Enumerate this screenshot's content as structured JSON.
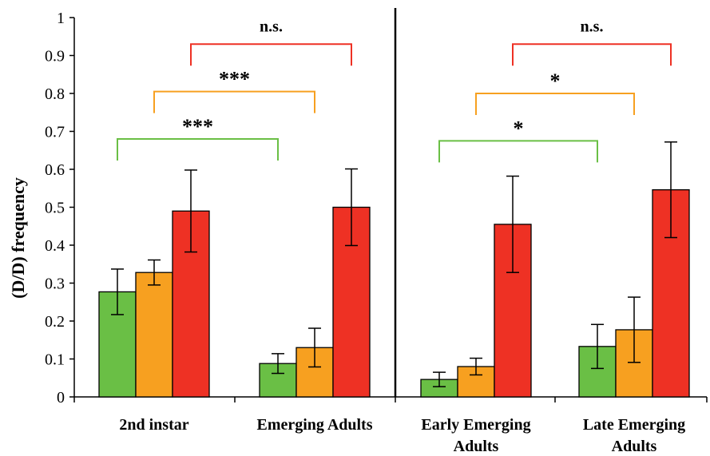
{
  "chart_data": {
    "type": "bar",
    "ylabel": "(D/D) frequency",
    "ylim": [
      0,
      1
    ],
    "yticks": [
      "0",
      "0.1",
      "0.2",
      "0.3",
      "0.4",
      "0.5",
      "0.6",
      "0.7",
      "0.8",
      "0.9",
      "1"
    ],
    "categories": [
      [
        "2nd instar"
      ],
      [
        "Emerging Adults"
      ],
      [
        "Early Emerging",
        "Adults"
      ],
      [
        "Late Emerging",
        "Adults"
      ]
    ],
    "series": [
      {
        "color": "#6abf45",
        "values": [
          0.277,
          0.088,
          0.046,
          0.133
        ],
        "errors": [
          0.06,
          0.026,
          0.019,
          0.058
        ]
      },
      {
        "color": "#f7a020",
        "values": [
          0.328,
          0.13,
          0.08,
          0.177
        ],
        "errors": [
          0.033,
          0.051,
          0.022,
          0.086
        ]
      },
      {
        "color": "#ee3124",
        "values": [
          0.49,
          0.5,
          0.455,
          0.546
        ],
        "errors": [
          0.108,
          0.101,
          0.127,
          0.126
        ]
      }
    ],
    "divider_after_category": 1,
    "significance": [
      {
        "label": "***",
        "from_category": 0,
        "to_category": 1,
        "series": 0,
        "level": 0.68
      },
      {
        "label": "***",
        "from_category": 0,
        "to_category": 1,
        "series": 1,
        "level": 0.805
      },
      {
        "label": "n.s.",
        "from_category": 0,
        "to_category": 1,
        "series": 2,
        "level": 0.93
      },
      {
        "label": "*",
        "from_category": 2,
        "to_category": 3,
        "series": 0,
        "level": 0.675
      },
      {
        "label": "*",
        "from_category": 2,
        "to_category": 3,
        "series": 1,
        "level": 0.8
      },
      {
        "label": "n.s.",
        "from_category": 2,
        "to_category": 3,
        "series": 2,
        "level": 0.93
      }
    ],
    "grid": false,
    "legend": "none"
  }
}
